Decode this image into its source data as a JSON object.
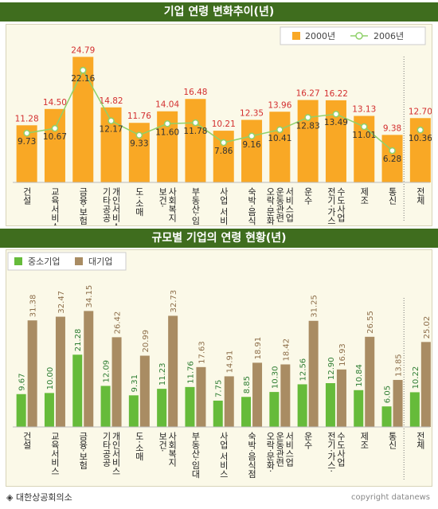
{
  "chart_data": [
    {
      "type": "bar",
      "title": "기업 연령 변화추이(년)",
      "categories": [
        "건설",
        "교육서비스",
        "금융·보험",
        "기타공공·개인서비스",
        "도·소매",
        "보건·사회복지",
        "부동산·임대",
        "사업 서비스",
        "숙박·음식점",
        "오락·문화·운동관련서비스업",
        "운수",
        "전기·가스·수도사업",
        "제조",
        "통신",
        "전체"
      ],
      "category_lines": [
        [
          "건설"
        ],
        [
          "교육서비스"
        ],
        [
          "금융·보험"
        ],
        [
          "기타공공",
          "개인서비스"
        ],
        [
          "도·소매"
        ],
        [
          "보건·",
          "사회복지"
        ],
        [
          "부동산·임대"
        ],
        [
          "사업 서비스"
        ],
        [
          "숙박·음식점"
        ],
        [
          "오락·문화·",
          "운동관련",
          "서비스업"
        ],
        [
          "운수"
        ],
        [
          "전기·가스·",
          "수도사업"
        ],
        [
          "제조"
        ],
        [
          "통신"
        ],
        [
          "전체"
        ]
      ],
      "series": [
        {
          "name": "2000년",
          "kind": "bar",
          "color": "#f9a825",
          "values": [
            11.28,
            14.5,
            24.79,
            14.82,
            11.76,
            14.04,
            16.48,
            10.21,
            12.35,
            13.96,
            16.27,
            16.22,
            13.13,
            9.38,
            12.7
          ]
        },
        {
          "name": "2006년",
          "kind": "line",
          "color": "#8fd16a",
          "values": [
            9.73,
            10.67,
            22.16,
            12.17,
            9.33,
            11.6,
            11.78,
            7.86,
            9.16,
            10.41,
            12.83,
            13.49,
            11.01,
            6.28,
            10.36
          ]
        }
      ],
      "ylim": [
        0,
        28
      ],
      "label_colors": {
        "bar": "#d32f2f",
        "line": "#333333"
      }
    },
    {
      "type": "bar",
      "title": "규모별 기업의 연령 현황(년)",
      "categories": [
        "건설",
        "교육서비스",
        "금융·보험",
        "기타공공·개인서비스",
        "도·소매",
        "보건·사회복지",
        "부동산·임대",
        "사업 서비스",
        "숙박·음식점",
        "오락·문화·운동관련서비스업",
        "운수",
        "전기·가스·수도사업",
        "제조",
        "통신",
        "전체"
      ],
      "category_lines": [
        [
          "건설"
        ],
        [
          "교육서비스"
        ],
        [
          "금융·보험"
        ],
        [
          "기타공공",
          "개인서비스"
        ],
        [
          "도·소매"
        ],
        [
          "보건·",
          "사회복지"
        ],
        [
          "부동산·임대"
        ],
        [
          "사업 서비스"
        ],
        [
          "숙박·음식점"
        ],
        [
          "오락·문화·",
          "운동관련",
          "서비스업"
        ],
        [
          "운수"
        ],
        [
          "전기·가스·",
          "수도사업"
        ],
        [
          "제조"
        ],
        [
          "통신"
        ],
        [
          "전체"
        ]
      ],
      "series": [
        {
          "name": "중소기업",
          "kind": "bar",
          "color": "#66bb3a",
          "values": [
            9.67,
            10.0,
            21.28,
            12.09,
            9.31,
            11.23,
            11.76,
            7.75,
            8.85,
            10.3,
            12.56,
            12.9,
            10.84,
            6.05,
            10.22
          ]
        },
        {
          "name": "대기업",
          "kind": "bar",
          "color": "#a98c63",
          "values": [
            31.38,
            32.47,
            34.15,
            26.42,
            20.99,
            32.73,
            17.63,
            14.91,
            18.91,
            18.42,
            31.25,
            16.93,
            26.55,
            13.85,
            25.02
          ]
        }
      ],
      "ylim": [
        0,
        38
      ],
      "label_colors": {
        "small": "#2e7d32",
        "large": "#8d6e4a"
      }
    }
  ],
  "footer": {
    "source": "◈ 대한상공회의소",
    "copyright": "copyright datanews"
  }
}
